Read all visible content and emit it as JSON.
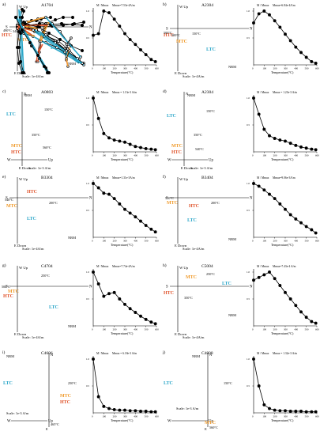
{
  "panels": [
    {
      "letter": "a)",
      "sample": "A1704",
      "zlabels": {
        "top": "W  Up",
        "right": "N",
        "left": "S",
        "bottom": "E  Down"
      },
      "temps": [
        "200°C",
        "340°C",
        "490°C"
      ],
      "components": [
        "HTC",
        "MTC",
        "LTC"
      ],
      "nrm": "NRM",
      "scale": "Scale: 1e-4A/m",
      "demag": {
        "ylabel": "M / Mmax",
        "mmax": "Mmax=7.53e-4A/m",
        "xlabel": "Temperature(°C)",
        "curve": [
          [
            0,
            0.55
          ],
          [
            50,
            0.58
          ],
          [
            100,
            1.0
          ],
          [
            150,
            0.97
          ],
          [
            200,
            0.85
          ],
          [
            250,
            0.72
          ],
          [
            300,
            0.58
          ],
          [
            350,
            0.47
          ],
          [
            400,
            0.38
          ],
          [
            450,
            0.28
          ],
          [
            500,
            0.19
          ],
          [
            550,
            0.1
          ],
          [
            590,
            0.06
          ]
        ]
      }
    },
    {
      "letter": "b)",
      "sample": "A2304",
      "zlabels": {
        "top": "W  Up",
        "right": "N",
        "left": "S",
        "bottom": "E  Down"
      },
      "temps": [
        "150°C",
        "300°C",
        "500°C"
      ],
      "components": [
        "HTC",
        "MTC",
        "LTC"
      ],
      "nrm": "NRM",
      "scale": "Scale: 1e-4A/m",
      "demag": {
        "ylabel": "M / Mmax",
        "mmax": "Mmax=6.84e-4A/m",
        "xlabel": "Temperature(°C)",
        "curve": [
          [
            0,
            0.78
          ],
          [
            50,
            0.95
          ],
          [
            100,
            1.0
          ],
          [
            150,
            0.93
          ],
          [
            200,
            0.82
          ],
          [
            250,
            0.7
          ],
          [
            300,
            0.57
          ],
          [
            350,
            0.45
          ],
          [
            400,
            0.33
          ],
          [
            450,
            0.23
          ],
          [
            500,
            0.14
          ],
          [
            550,
            0.06
          ],
          [
            590,
            0.03
          ]
        ]
      }
    },
    {
      "letter": "c)",
      "sample": "A0803",
      "zlabels": {
        "top": "N",
        "right": "Up",
        "left": "W",
        "bottom": "E  Down"
      },
      "temps": [
        "150°C",
        "350°C",
        "560°C"
      ],
      "components": [
        "MTC",
        "HTC",
        "LTC"
      ],
      "nrm": "NRM",
      "scale": "Scale: 1e-3 A/m",
      "demag": {
        "ylabel": "M / Mmax",
        "mmax": "Mmax = 1.13e-3 A/m",
        "xlabel": "Temperature(°C)",
        "curve": [
          [
            0,
            1.0
          ],
          [
            50,
            0.62
          ],
          [
            100,
            0.34
          ],
          [
            150,
            0.26
          ],
          [
            200,
            0.22
          ],
          [
            250,
            0.2
          ],
          [
            300,
            0.18
          ],
          [
            350,
            0.14
          ],
          [
            400,
            0.1
          ],
          [
            450,
            0.08
          ],
          [
            500,
            0.06
          ],
          [
            550,
            0.05
          ],
          [
            590,
            0.04
          ]
        ]
      }
    },
    {
      "letter": "d)",
      "sample": "A2304",
      "zlabels": {
        "top": "N",
        "right": "Up",
        "left": "W",
        "bottom": "E  Down"
      },
      "temps": [
        "150°C",
        "350°C",
        "540°C"
      ],
      "components": [
        "MTC",
        "HTC",
        "LTC"
      ],
      "nrm": "NRM",
      "scale": "Scale: 1e-3 A/m",
      "demag": {
        "ylabel": "M / Mmax",
        "mmax": "Mmax = 1.23e-3 A/m",
        "xlabel": "Temperature(°C)",
        "curve": [
          [
            0,
            1.0
          ],
          [
            50,
            0.7
          ],
          [
            100,
            0.42
          ],
          [
            150,
            0.3
          ],
          [
            200,
            0.25
          ],
          [
            250,
            0.22
          ],
          [
            300,
            0.2
          ],
          [
            350,
            0.16
          ],
          [
            400,
            0.12
          ],
          [
            450,
            0.09
          ],
          [
            500,
            0.07
          ],
          [
            550,
            0.05
          ],
          [
            590,
            0.04
          ]
        ]
      }
    },
    {
      "letter": "e)",
      "sample": "B3304",
      "zlabels": {
        "top": "W  Up",
        "right": "N",
        "left": "S",
        "bottom": "E  Down"
      },
      "temps": [
        "540°C",
        "200°C"
      ],
      "components": [
        "HTC",
        "MTC",
        "LTC"
      ],
      "nrm": "NRM",
      "scale": "Scale: 1e-4A/m",
      "demag": {
        "ylabel": "M / Mmax",
        "mmax": "Mmax=1.31e-3A/m",
        "xlabel": "Temperature(°C)",
        "curve": [
          [
            0,
            1.0
          ],
          [
            50,
            0.92
          ],
          [
            100,
            0.82
          ],
          [
            150,
            0.8
          ],
          [
            200,
            0.72
          ],
          [
            250,
            0.62
          ],
          [
            300,
            0.52
          ],
          [
            350,
            0.45
          ],
          [
            400,
            0.38
          ],
          [
            450,
            0.3
          ],
          [
            500,
            0.22
          ],
          [
            550,
            0.15
          ],
          [
            590,
            0.1
          ]
        ]
      }
    },
    {
      "letter": "f)",
      "sample": "B3404",
      "zlabels": {
        "top": "W  Up",
        "right": "N",
        "left": "S",
        "bottom": "E  Down"
      },
      "temps": [
        "510°C",
        "200°C"
      ],
      "components": [
        "HTC",
        "MTC",
        "LTC"
      ],
      "nrm": "NRM",
      "scale": "Scale: 1e-4A/m",
      "demag": {
        "ylabel": "M / Mmax",
        "mmax": "Mmax=9.06e-3A/m",
        "xlabel": "Temperature(°C)",
        "curve": [
          [
            0,
            1.0
          ],
          [
            50,
            0.95
          ],
          [
            100,
            0.88
          ],
          [
            150,
            0.8
          ],
          [
            200,
            0.72
          ],
          [
            250,
            0.62
          ],
          [
            300,
            0.52
          ],
          [
            350,
            0.42
          ],
          [
            400,
            0.34
          ],
          [
            450,
            0.27
          ],
          [
            500,
            0.2
          ],
          [
            550,
            0.14
          ],
          [
            590,
            0.08
          ]
        ]
      }
    },
    {
      "letter": "g)",
      "sample": "C4704",
      "zlabels": {
        "top": "W  Up",
        "right": "N",
        "left": "S",
        "bottom": "E  Down"
      },
      "temps": [
        "250°C",
        "500°C"
      ],
      "components": [
        "MTC",
        "HTC",
        "LTC"
      ],
      "nrm": "NRM",
      "scale": "Scale: 1e-4A/m",
      "demag": {
        "ylabel": "M / Mmax",
        "mmax": "Mmax=7.74e-4A/m",
        "xlabel": "Temperature(°C)",
        "curve": [
          [
            0,
            1.0
          ],
          [
            50,
            0.78
          ],
          [
            100,
            0.55
          ],
          [
            150,
            0.6
          ],
          [
            200,
            0.62
          ],
          [
            250,
            0.5
          ],
          [
            300,
            0.4
          ],
          [
            350,
            0.32
          ],
          [
            400,
            0.25
          ],
          [
            450,
            0.18
          ],
          [
            500,
            0.12
          ],
          [
            550,
            0.07
          ],
          [
            590,
            0.04
          ]
        ]
      }
    },
    {
      "letter": "h)",
      "sample": "C5004",
      "zlabels": {
        "top": "W  Up",
        "right": "N",
        "left": "S",
        "bottom": "E  Down"
      },
      "temps": [
        "250°C",
        "350°C"
      ],
      "components": [
        "MTC",
        "HTC",
        "LTC"
      ],
      "nrm": "NRM",
      "scale": "Scale: 1e-4A/m",
      "demag": {
        "ylabel": "M / Mmax",
        "mmax": "Mmax=7.43e-4 A/m",
        "xlabel": "Temperature(°C)",
        "curve": [
          [
            0,
            0.85
          ],
          [
            50,
            0.9
          ],
          [
            100,
            0.95
          ],
          [
            150,
            1.0
          ],
          [
            200,
            0.88
          ],
          [
            250,
            0.75
          ],
          [
            300,
            0.62
          ],
          [
            350,
            0.5
          ],
          [
            400,
            0.38
          ],
          [
            450,
            0.26
          ],
          [
            500,
            0.16
          ],
          [
            550,
            0.08
          ],
          [
            590,
            0.05
          ]
        ]
      }
    },
    {
      "letter": "i)",
      "sample": "C4606",
      "zlabels": {
        "top": "N",
        "right": "Up",
        "left": "W",
        "bottom": "E"
      },
      "temps": [
        "250°C",
        "465°C"
      ],
      "components": [
        "LTC",
        "MTC",
        "HTC"
      ],
      "nrm": "NRM",
      "scale": "Scale: 1e-3 A/m",
      "demag": {
        "ylabel": "M / Mmax",
        "mmax": "Mmax = 6.18e-3 A/m",
        "xlabel": "Temperature(°C)",
        "curve": [
          [
            0,
            1.0
          ],
          [
            50,
            0.3
          ],
          [
            100,
            0.12
          ],
          [
            150,
            0.08
          ],
          [
            200,
            0.06
          ],
          [
            250,
            0.05
          ],
          [
            300,
            0.05
          ],
          [
            350,
            0.04
          ],
          [
            400,
            0.04
          ],
          [
            450,
            0.03
          ],
          [
            500,
            0.03
          ],
          [
            550,
            0.02
          ],
          [
            590,
            0.02
          ]
        ]
      }
    },
    {
      "letter": "j)",
      "sample": "C4808",
      "zlabels": {
        "top": "N",
        "right": "Up",
        "left": "W",
        "bottom": "E"
      },
      "temps": [
        "150°C",
        "560°C"
      ],
      "components": [
        "LTC",
        "MTC"
      ],
      "nrm": "NRM",
      "scale": "Scale: 1e-3 A/m",
      "demag": {
        "ylabel": "M / Mmax",
        "mmax": "Mmax = 1.32e-3 A/m",
        "xlabel": "Temperature(°C)",
        "curve": [
          [
            0,
            1.0
          ],
          [
            50,
            0.5
          ],
          [
            100,
            0.15
          ],
          [
            150,
            0.08
          ],
          [
            200,
            0.05
          ],
          [
            250,
            0.04
          ],
          [
            300,
            0.04
          ],
          [
            350,
            0.03
          ],
          [
            400,
            0.03
          ],
          [
            450,
            0.03
          ],
          [
            500,
            0.02
          ],
          [
            550,
            0.02
          ],
          [
            590,
            0.02
          ]
        ]
      }
    }
  ],
  "demag_axes": {
    "xlim": [
      0,
      600
    ],
    "ylim": [
      0,
      1.0
    ],
    "xticks": [
      "0",
      "100",
      "200",
      "300",
      "400",
      "500",
      "600"
    ],
    "yticks": [
      "0.5",
      "1.0"
    ]
  },
  "colors": {
    "htc": "#e0542c",
    "mtc": "#f09a2a",
    "ltc": "#2aa6c8",
    "data": "#000000"
  }
}
